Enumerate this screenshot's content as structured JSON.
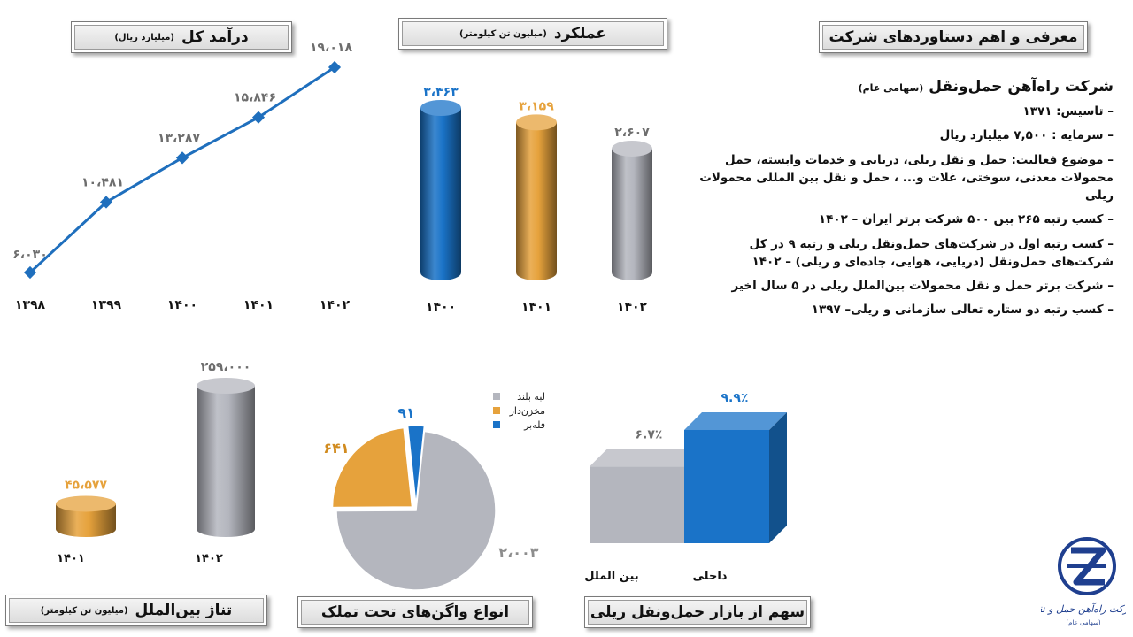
{
  "headers": {
    "revenue": {
      "title": "درآمد کل",
      "sub": "(میلیارد ریال)"
    },
    "performance": {
      "title": "عملکرد",
      "sub": "(میلیون تن کیلومتر)"
    },
    "intro": {
      "title": "معرفی و اهم دستاوردهای شرکت"
    },
    "intl": {
      "title": "تناژ بین‌الملل",
      "sub": "(میلیون تن کیلومتر)"
    },
    "wagons": {
      "title": "انواع واگن‌های تحت تملک"
    },
    "share": {
      "title": "سهم از بازار حمل‌ونقل ریلی"
    }
  },
  "company": {
    "name": "شرکت راه‌آهن حمل‌ونقل",
    "legal": "(سهامی عام)",
    "items": [
      "– تاسیس: ۱۳۷۱",
      "– سرمایه : ۷,۵۰۰ میلیارد ریال",
      "– موضوع فعالیت: حمل و نقل ریلی، دریایی و خدمات وابسته، حمل محمولات معدنی، سوختی، غلات و... ، حمل و نقل بین المللی محمولات ریلی",
      "– کسب رتبه ۲۶۵ بین ۵۰۰ شرکت برتر ایران – ۱۴۰۲",
      "– کسب رتبه اول در شرکت‌های حمل‌ونقل ریلی و رتبه ۹ در کل شرکت‌های حمل‌ونقل (دریایی، هوایی، جاده‌ای و ریلی) – ۱۴۰۲",
      "– شرکت برتر حمل و نقل محمولات بین‌الملل ریلی در ۵ سال اخیر",
      "– کسب رتبه دو ستاره تعالی سازمانی و ریلی– ۱۳۹۷"
    ]
  },
  "logo": {
    "text": "شرکت راه‌آهن حمل و نقل",
    "sub": "(سهامی عام)"
  },
  "colors": {
    "blue": "#1a73c8",
    "orange": "#e6a23c",
    "gray": "#b4b6be",
    "line": "#1f6fbd"
  },
  "chart_data": [
    {
      "id": "revenue",
      "type": "line",
      "x": [
        "۱۳۹۸",
        "۱۳۹۹",
        "۱۴۰۰",
        "۱۴۰۱",
        "۱۴۰۲"
      ],
      "values": [
        6030,
        10481,
        13287,
        15846,
        19018
      ],
      "labels": [
        "۶،۰۳۰",
        "۱۰،۴۸۱",
        "۱۳،۲۸۷",
        "۱۵،۸۴۶",
        "۱۹،۰۱۸"
      ],
      "unit": "(میلیارد ریال)"
    },
    {
      "id": "performance",
      "type": "bar",
      "categories": [
        "۱۴۰۰",
        "۱۴۰۱",
        "۱۴۰۲"
      ],
      "values": [
        3463,
        3159,
        2607
      ],
      "labels": [
        "۳،۴۶۳",
        "۳،۱۵۹",
        "۲،۶۰۷"
      ],
      "colors": [
        "#1a73c8",
        "#e6a23c",
        "#b4b6be"
      ]
    },
    {
      "id": "intl",
      "type": "bar",
      "categories": [
        "۱۴۰۱",
        "۱۴۰۲"
      ],
      "values": [
        45577,
        259000
      ],
      "labels": [
        "۴۵،۵۷۷",
        "۲۵۹،۰۰۰"
      ],
      "colors": [
        "#e6a23c",
        "#b4b6be"
      ]
    },
    {
      "id": "wagons",
      "type": "pie",
      "slices": [
        {
          "name": "لبه بلند",
          "value": 2003,
          "label": "۲،۰۰۳",
          "color": "#b4b6be"
        },
        {
          "name": "مخزن‌دار",
          "value": 641,
          "label": "۶۴۱",
          "color": "#e6a23c"
        },
        {
          "name": "فله‌بر",
          "value": 91,
          "label": "۹۱",
          "color": "#1a73c8"
        }
      ],
      "legend": "top-right"
    },
    {
      "id": "share",
      "type": "bar",
      "categories": [
        "بین الملل",
        "داخلی"
      ],
      "values": [
        6.7,
        9.9
      ],
      "labels": [
        "۶.۷٪",
        "۹.۹٪"
      ],
      "colors": [
        "#b4b6be",
        "#1a73c8"
      ]
    }
  ]
}
